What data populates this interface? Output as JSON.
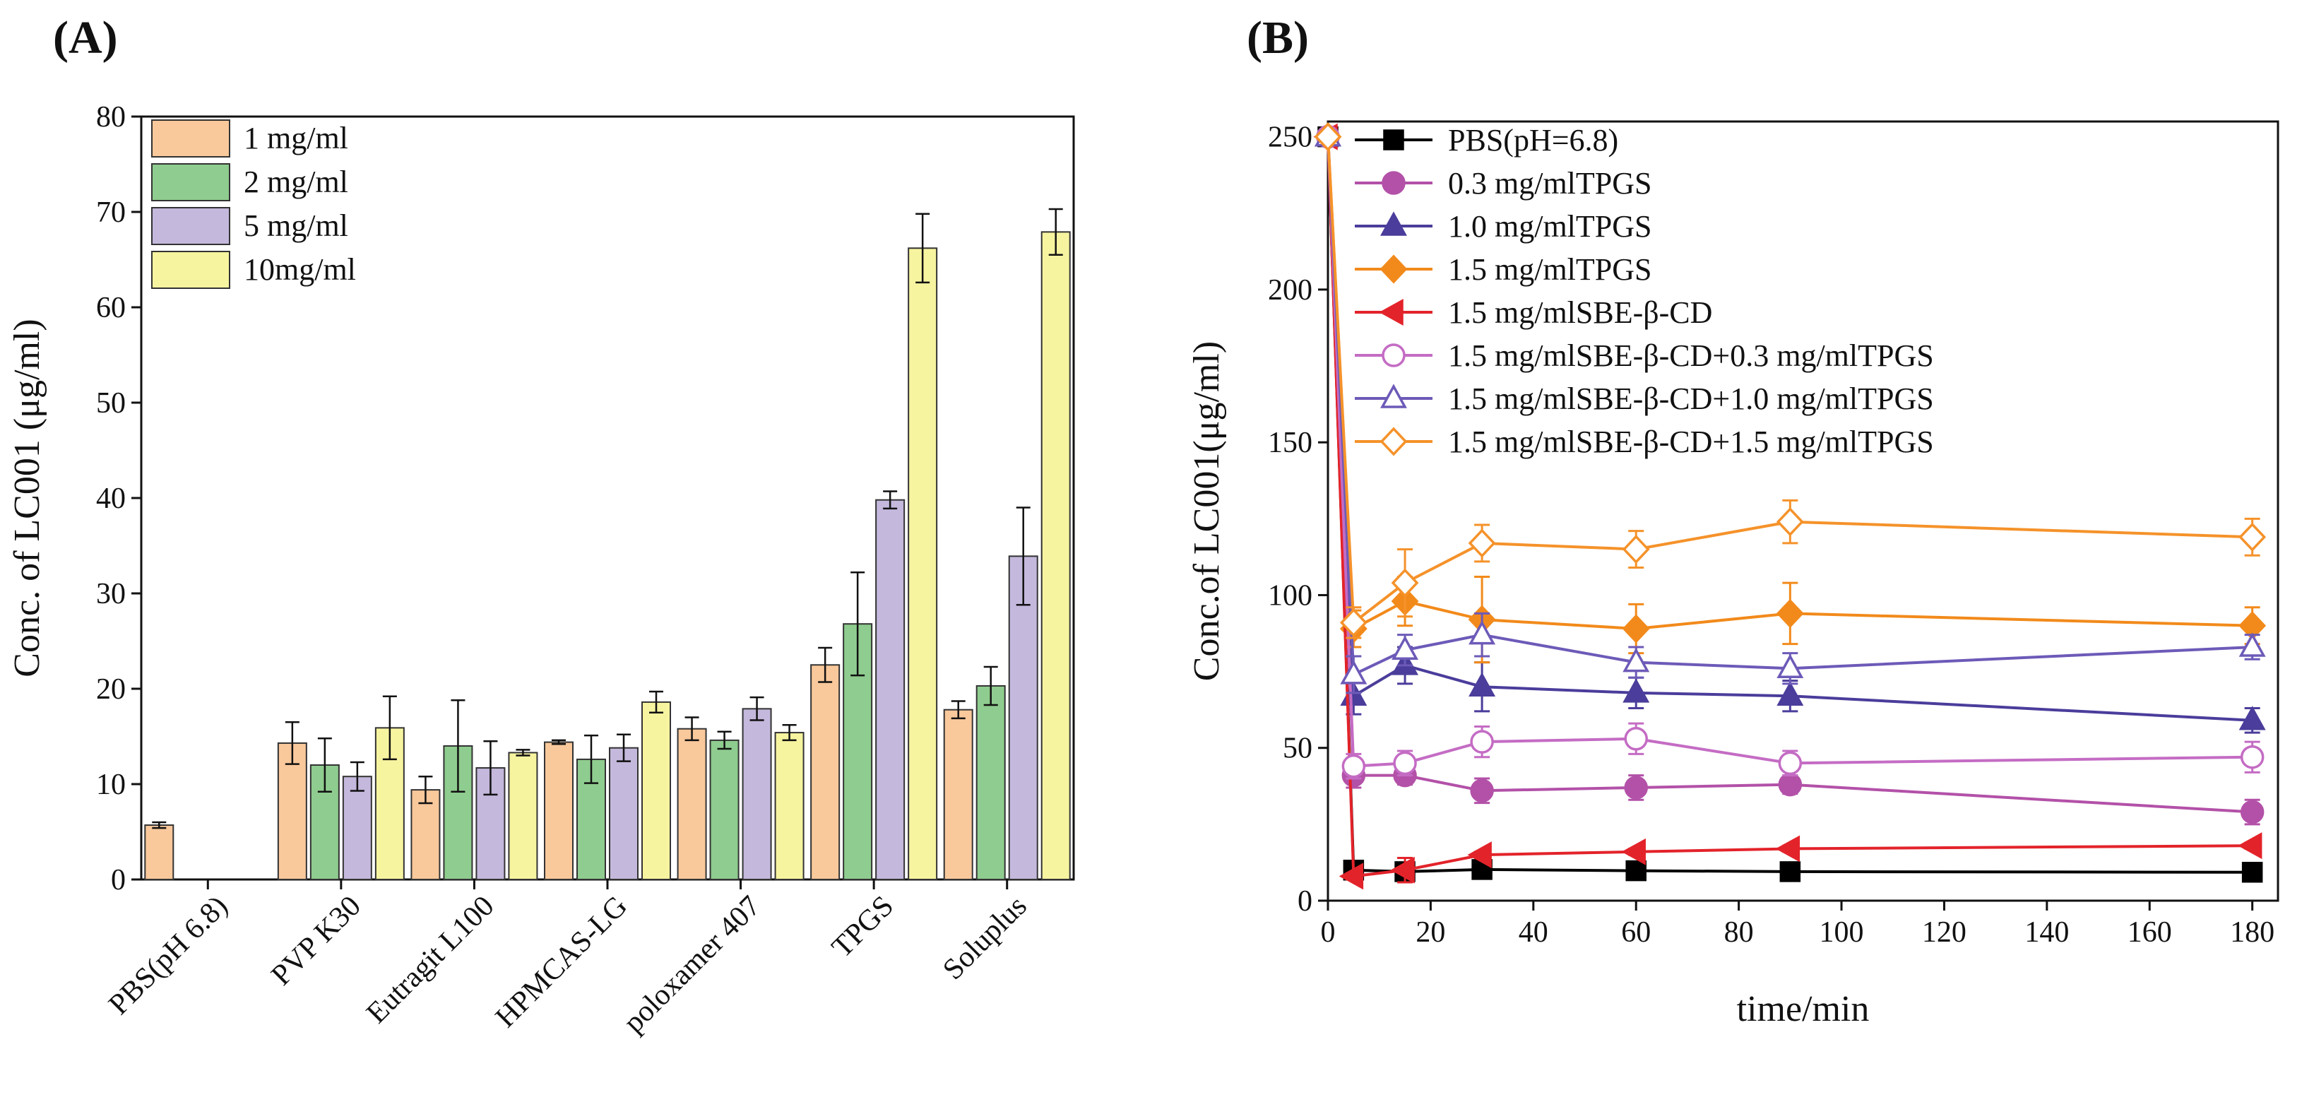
{
  "figure": {
    "panel_a_label": "(A)",
    "panel_b_label": "(B)"
  },
  "chart_data": [
    {
      "type": "bar",
      "panel": "A",
      "title": "",
      "xlabel": "",
      "ylabel": "Conc. of LC001 (μg/ml)",
      "ylim": [
        0,
        80
      ],
      "yticks": [
        0,
        10,
        20,
        30,
        40,
        50,
        60,
        70,
        80
      ],
      "legend_position": "top-left",
      "categories": [
        "PBS(pH 6.8)",
        "PVP K30",
        "Eutragit L100",
        "HPMCAS-LG",
        "poloxamer 407",
        "TPGS",
        "Soluplus"
      ],
      "series": [
        {
          "name": "1 mg/ml",
          "color": "#f9c89b",
          "values": [
            5.7,
            14.3,
            9.4,
            14.4,
            15.8,
            22.5,
            17.8
          ],
          "errors": [
            0.3,
            2.2,
            1.4,
            0.2,
            1.2,
            1.8,
            0.9
          ]
        },
        {
          "name": "2 mg/ml",
          "color": "#8fcc8f",
          "values": [
            null,
            12.0,
            14.0,
            12.6,
            14.6,
            26.8,
            20.3
          ],
          "errors": [
            null,
            2.8,
            4.8,
            2.5,
            0.9,
            5.4,
            2.0
          ]
        },
        {
          "name": "5 mg/ml",
          "color": "#c4b8dc",
          "values": [
            null,
            10.8,
            11.7,
            13.8,
            17.9,
            39.8,
            33.9
          ],
          "errors": [
            null,
            1.5,
            2.8,
            1.4,
            1.2,
            0.9,
            5.1
          ]
        },
        {
          "name": "10mg/ml",
          "color": "#f7f4a0",
          "values": [
            null,
            15.9,
            13.3,
            18.6,
            15.4,
            66.2,
            67.9
          ],
          "errors": [
            null,
            3.3,
            0.3,
            1.1,
            0.8,
            3.6,
            2.4
          ]
        }
      ]
    },
    {
      "type": "line",
      "panel": "B",
      "title": "",
      "xlabel": "time/min",
      "ylabel": "Conc.of LC001(μg/ml)",
      "xlim": [
        0,
        185
      ],
      "ylim": [
        0,
        255
      ],
      "xticks": [
        0,
        20,
        40,
        60,
        80,
        100,
        120,
        140,
        160,
        180
      ],
      "yticks": [
        0,
        50,
        100,
        150,
        200,
        250
      ],
      "legend_position": "top-left",
      "x": [
        0,
        5,
        15,
        30,
        60,
        90,
        180
      ],
      "series": [
        {
          "name": "PBS(pH=6.8)",
          "color": "#000000",
          "marker": "square",
          "filled": true,
          "values": [
            250,
            10,
            9.5,
            10.2,
            9.8,
            9.5,
            9.3
          ],
          "errors": [
            0,
            1,
            1,
            1,
            1,
            1,
            1
          ]
        },
        {
          "name": "0.3 mg/mlTPGS",
          "color": "#b351a8",
          "marker": "circle",
          "filled": true,
          "values": [
            250,
            41,
            41,
            36,
            37,
            38,
            29
          ],
          "errors": [
            0,
            4,
            3,
            4,
            4,
            3,
            4
          ]
        },
        {
          "name": "1.0 mg/mlTPGS",
          "color": "#4a3d9b",
          "marker": "triangle-up",
          "filled": true,
          "values": [
            250,
            67,
            77,
            70,
            68,
            67,
            59
          ],
          "errors": [
            0,
            6,
            6,
            8,
            5,
            5,
            4
          ]
        },
        {
          "name": "1.5 mg/mlTPGS",
          "color": "#f28a1b",
          "marker": "diamond",
          "filled": true,
          "values": [
            250,
            89,
            98,
            92,
            89,
            94,
            90
          ],
          "errors": [
            0,
            6,
            8,
            14,
            8,
            10,
            6
          ]
        },
        {
          "name": "1.5 mg/mlSBE-β-CD",
          "color": "#e3232a",
          "marker": "triangle-left",
          "filled": true,
          "values": [
            250,
            8,
            10,
            15,
            16,
            17,
            18
          ],
          "errors": [
            0,
            1,
            4,
            1,
            1,
            1,
            1
          ]
        },
        {
          "name": "1.5 mg/mlSBE-β-CD+0.3 mg/mlTPGS",
          "color": "#c46cc4",
          "marker": "circle",
          "filled": false,
          "values": [
            250,
            44,
            45,
            52,
            53,
            45,
            47
          ],
          "errors": [
            0,
            4,
            4,
            5,
            5,
            4,
            5
          ]
        },
        {
          "name": "1.5 mg/mlSBE-β-CD+1.0 mg/mlTPGS",
          "color": "#6d5ab8",
          "marker": "triangle-up",
          "filled": false,
          "values": [
            250,
            74,
            82,
            87,
            78,
            76,
            83
          ],
          "errors": [
            0,
            6,
            5,
            7,
            5,
            5,
            4
          ]
        },
        {
          "name": "1.5 mg/mlSBE-β-CD+1.5 mg/mlTPGS",
          "color": "#f5922a",
          "marker": "diamond",
          "filled": false,
          "values": [
            250,
            91,
            104,
            117,
            115,
            124,
            119
          ],
          "errors": [
            0,
            5,
            11,
            6,
            6,
            7,
            6
          ]
        }
      ]
    }
  ]
}
